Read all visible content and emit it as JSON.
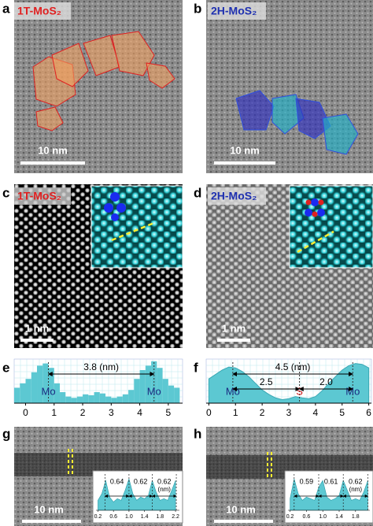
{
  "panels": {
    "a": {
      "letter": "a",
      "label": "1T-MoS₂",
      "scale_bar": "10 nm"
    },
    "b": {
      "letter": "b",
      "label": "2H-MoS₂",
      "scale_bar": "10 nm"
    },
    "c": {
      "letter": "c",
      "label": "1T-MoS₂",
      "scale_bar": "1 nm"
    },
    "d": {
      "letter": "d",
      "label": "2H-MoS₂",
      "scale_bar": "1 nm"
    },
    "e": {
      "letter": "e",
      "type": "bar",
      "color": "#5cc8d2",
      "xlim": [
        -0.4,
        5.5
      ],
      "ylim": [
        0,
        1
      ],
      "xticks": [
        0,
        1,
        2,
        3,
        4,
        5
      ],
      "x": [
        -0.3,
        -0.1,
        0.1,
        0.3,
        0.5,
        0.7,
        0.9,
        1.1,
        1.3,
        1.5,
        1.7,
        1.9,
        2.1,
        2.3,
        2.5,
        2.7,
        2.9,
        3.1,
        3.3,
        3.5,
        3.7,
        3.9,
        4.1,
        4.3,
        4.5,
        4.7,
        4.9,
        5.1,
        5.3
      ],
      "values": [
        0.35,
        0.45,
        0.55,
        0.7,
        0.85,
        0.9,
        0.8,
        0.45,
        0.25,
        0.15,
        0.12,
        0.15,
        0.2,
        0.18,
        0.25,
        0.22,
        0.15,
        0.12,
        0.15,
        0.2,
        0.3,
        0.55,
        0.75,
        0.85,
        0.95,
        0.8,
        0.55,
        0.4,
        0.35
      ],
      "markers": [
        {
          "x": 0.8,
          "label": "Mo",
          "color": "#1a2a80"
        },
        {
          "x": 4.5,
          "label": "Mo",
          "color": "#1a2a80"
        }
      ],
      "total": "3.8 (nm)"
    },
    "f": {
      "letter": "f",
      "type": "area",
      "color": "#5cc8d2",
      "xlim": [
        -0.1,
        6.1
      ],
      "ylim": [
        0,
        1
      ],
      "xticks": [
        0,
        1,
        2,
        3,
        4,
        5,
        6
      ],
      "x": [
        0,
        0.25,
        0.5,
        0.75,
        1,
        1.25,
        1.5,
        1.75,
        2,
        2.25,
        2.5,
        2.75,
        3,
        3.25,
        3.5,
        3.75,
        4,
        4.25,
        4.5,
        4.75,
        5,
        5.25,
        5.5,
        5.75,
        6
      ],
      "values": [
        0.55,
        0.65,
        0.75,
        0.82,
        0.8,
        0.72,
        0.6,
        0.45,
        0.3,
        0.2,
        0.12,
        0.08,
        0.1,
        0.15,
        0.12,
        0.1,
        0.15,
        0.28,
        0.45,
        0.6,
        0.75,
        0.85,
        0.9,
        0.88,
        0.8
      ],
      "markers": [
        {
          "x": 0.9,
          "label": "Mo",
          "color": "#1a2a80"
        },
        {
          "x": 3.4,
          "label": "S",
          "color": "#d02020"
        },
        {
          "x": 5.4,
          "label": "Mo",
          "color": "#1a2a80"
        }
      ],
      "total": "4.5 (nm)",
      "parts": [
        "2.5",
        "2.0"
      ]
    },
    "g": {
      "letter": "g",
      "scale_bar": "10 nm",
      "inset": {
        "color": "#5cc8d2",
        "xlim": [
          0.15,
          2.3
        ],
        "ylim": [
          0,
          1
        ],
        "xticks": [
          0.2,
          0.6,
          {
            "value": 1,
            "label": "1.0"
          },
          1.4,
          1.8,
          2.2
        ],
        "x": [
          0.2,
          0.3,
          0.4,
          0.5,
          0.6,
          0.7,
          0.8,
          0.9,
          1.0,
          1.1,
          1.2,
          1.3,
          1.4,
          1.5,
          1.6,
          1.7,
          1.8,
          1.9,
          2.0,
          2.1,
          2.2
        ],
        "values": [
          0.3,
          0.5,
          0.9,
          0.4,
          0.25,
          0.35,
          0.3,
          0.6,
          0.95,
          0.5,
          0.3,
          0.4,
          0.35,
          0.45,
          0.9,
          0.55,
          0.3,
          0.35,
          0.3,
          0.6,
          0.9
        ],
        "dividers": [
          0.38,
          1.0,
          1.6,
          2.22
        ],
        "spacings": [
          0.64,
          0.62,
          0.62
        ],
        "unit": "(nm)"
      }
    },
    "h": {
      "letter": "h",
      "scale_bar": "10 nm",
      "inset": {
        "color": "#5cc8d2",
        "xlim": [
          0.15,
          2.15
        ],
        "ylim": [
          0,
          1
        ],
        "xticks": [
          0.2,
          0.6,
          {
            "value": 1,
            "label": "1.0"
          },
          1.4,
          1.8
        ],
        "x": [
          0.2,
          0.3,
          0.4,
          0.5,
          0.6,
          0.7,
          0.8,
          0.9,
          1.0,
          1.1,
          1.2,
          1.3,
          1.4,
          1.5,
          1.6,
          1.7,
          1.8,
          1.9,
          2.0,
          2.1
        ],
        "values": [
          0.35,
          0.95,
          0.5,
          0.3,
          0.4,
          0.35,
          0.3,
          0.7,
          0.9,
          0.4,
          0.3,
          0.35,
          0.45,
          0.9,
          0.6,
          0.3,
          0.35,
          0.3,
          0.55,
          0.9
        ],
        "dividers": [
          0.3,
          0.9,
          1.5,
          2.1
        ],
        "spacings": [
          0.59,
          0.61,
          0.62
        ],
        "unit": "(nm)"
      }
    }
  }
}
